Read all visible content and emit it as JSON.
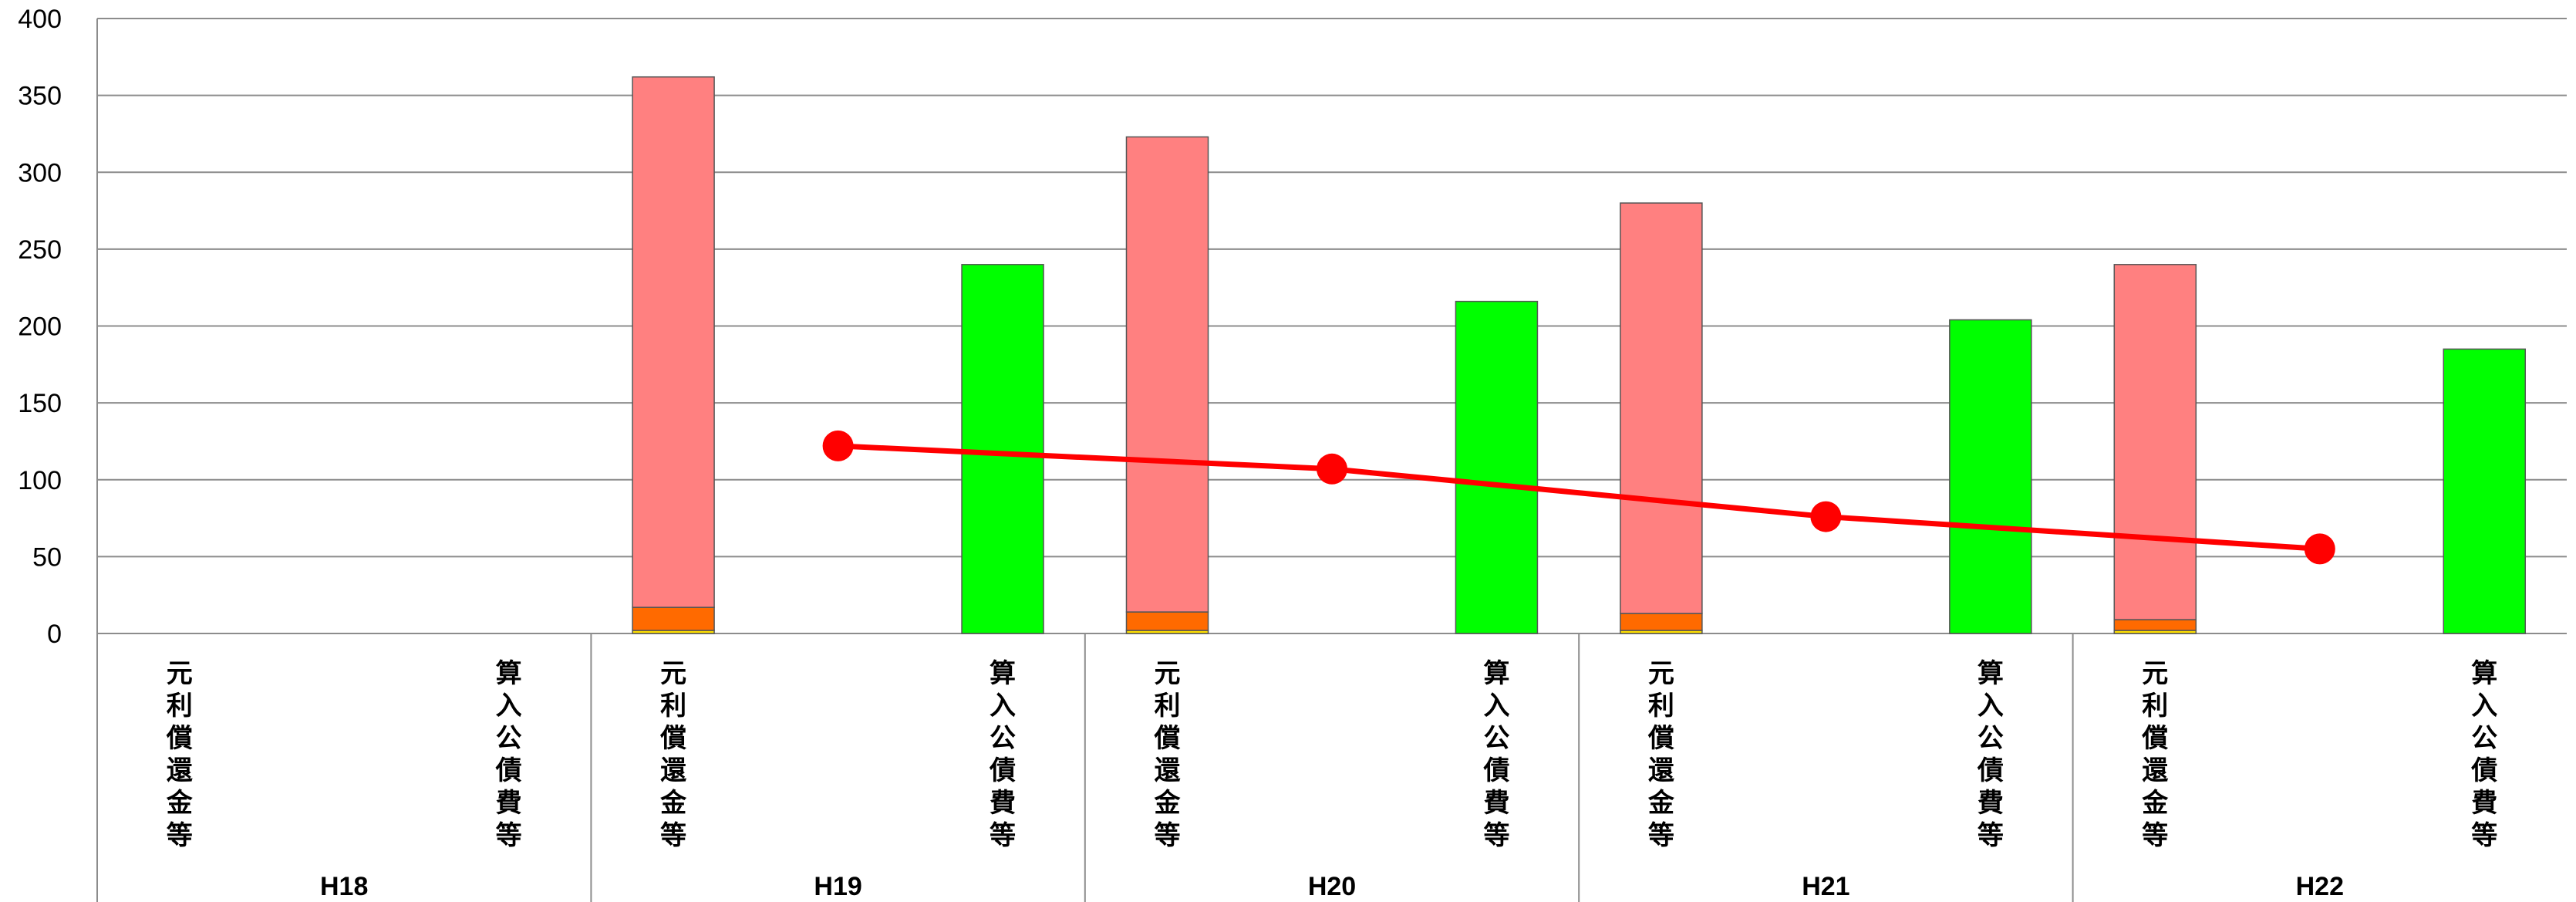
{
  "chart_data": {
    "type": "bar",
    "ylim": [
      0,
      400
    ],
    "yticks": [
      0,
      50,
      100,
      150,
      200,
      250,
      300,
      350,
      400
    ],
    "grid": true,
    "legend": "none",
    "years": [
      "H18",
      "H19",
      "H20",
      "H21",
      "H22"
    ],
    "subcategories": [
      "元利償還金等",
      "算入公債費等"
    ],
    "series": [
      {
        "stack": "元利償還金等",
        "color": "#ffe000",
        "values": [
          0,
          2,
          2,
          2,
          2
        ]
      },
      {
        "stack": "元利償還金等",
        "color": "#ff6a00",
        "values": [
          0,
          15,
          12,
          11,
          7
        ]
      },
      {
        "stack": "元利償還金等",
        "color": "#ff8080",
        "values": [
          0,
          345,
          309,
          267,
          231
        ]
      },
      {
        "stack": "算入公債費等",
        "color": "#00ff00",
        "values": [
          0,
          240,
          216,
          204,
          185
        ]
      },
      {
        "type": "line",
        "color": "#ff0000",
        "values": [
          null,
          122,
          107,
          76,
          55
        ]
      }
    ]
  }
}
